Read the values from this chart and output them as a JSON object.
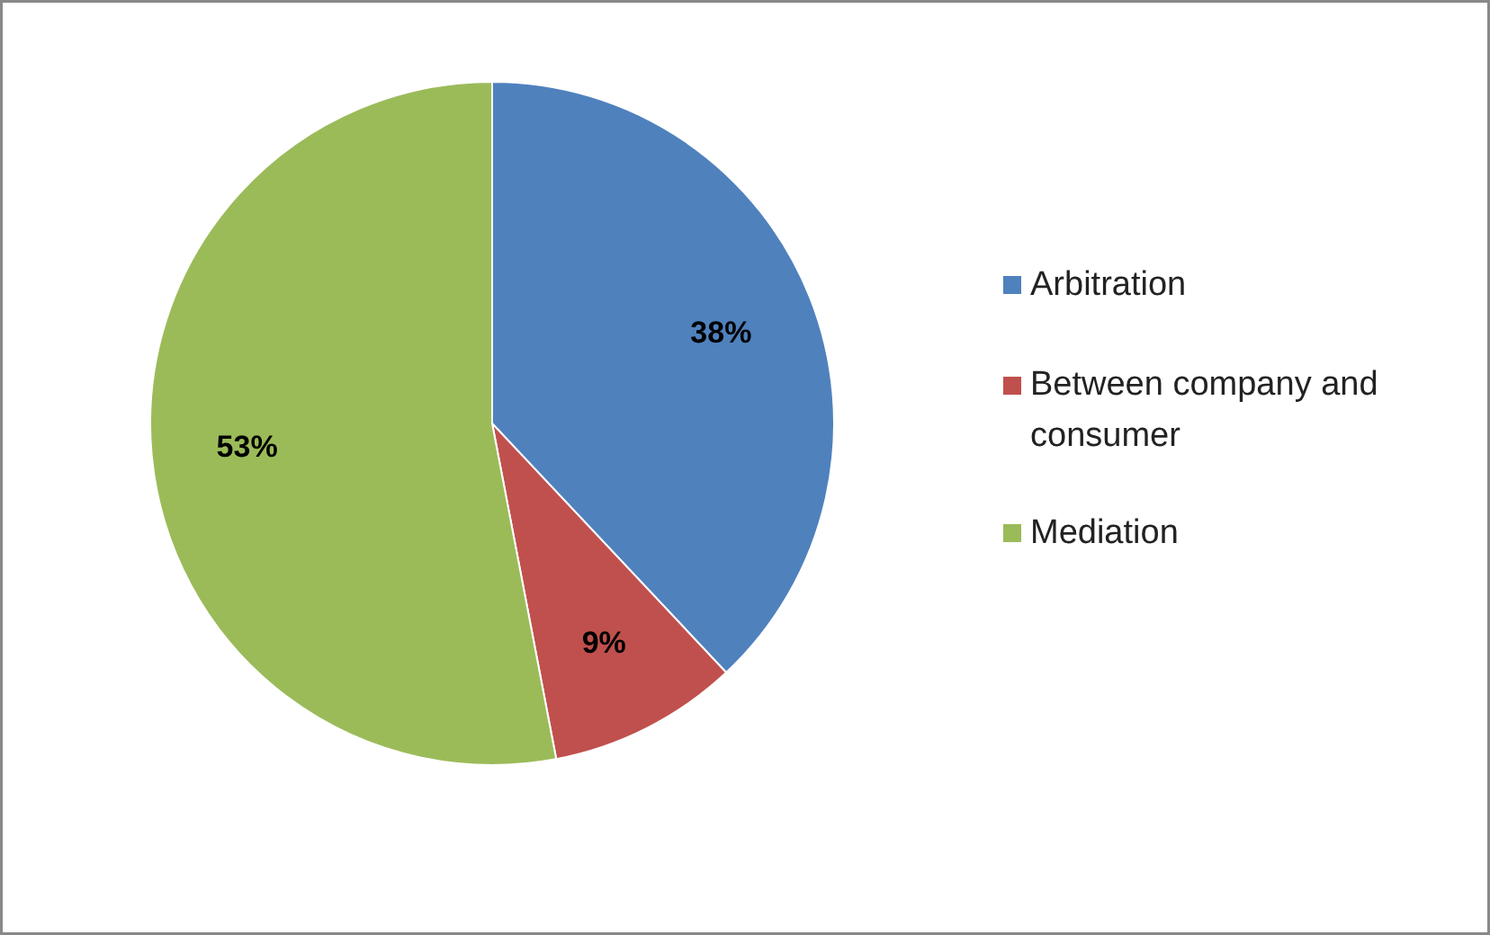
{
  "chart_data": {
    "type": "pie",
    "categories": [
      "Arbitration",
      "Between company and consumer",
      "Mediation"
    ],
    "values": [
      38,
      9,
      53
    ],
    "colors": [
      "#4f81bd",
      "#c0504d",
      "#9bbb59"
    ],
    "value_labels": [
      "38%",
      "9%",
      "53%"
    ],
    "legend": "right"
  }
}
